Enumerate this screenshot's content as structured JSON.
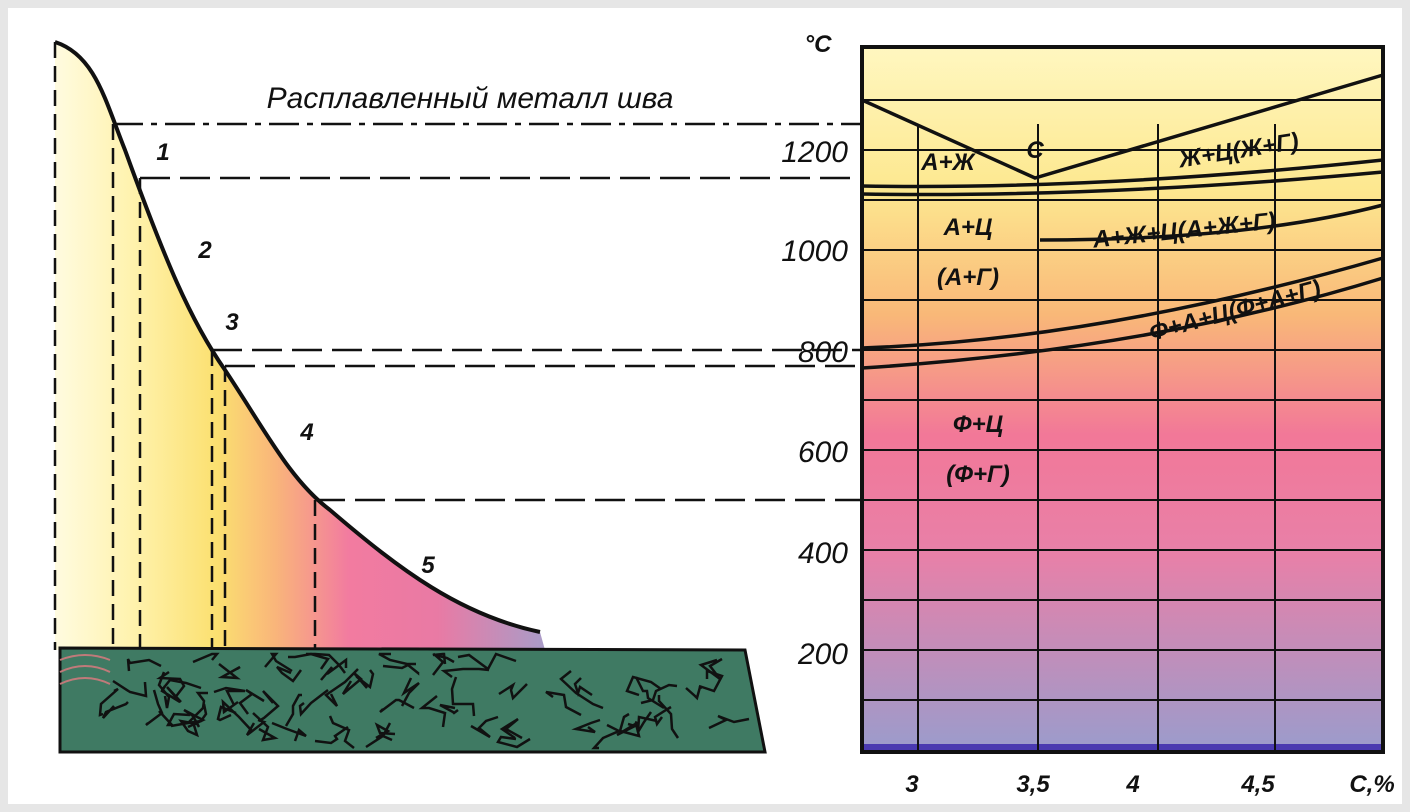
{
  "left_panel": {
    "caption": "Расплавленный металл шва",
    "zones": [
      "1",
      "2",
      "3",
      "4",
      "5"
    ]
  },
  "right_panel": {
    "y_unit": "°C",
    "y_labels": [
      "1200",
      "1000",
      "800",
      "600",
      "400",
      "200"
    ],
    "x_labels": [
      "3",
      "3,5",
      "4",
      "4,5"
    ],
    "x_unit": "C,%",
    "regions": [
      "А+Ж",
      "С",
      "Ж+Ц(Ж+Г)",
      "А+Ц",
      "(А+Г)",
      "А+Ж+Ц(А+Ж+Г)",
      "Ф+А+Ц(Ф+А+Г)",
      "Ф+Ц",
      "(Ф+Г)"
    ]
  }
}
